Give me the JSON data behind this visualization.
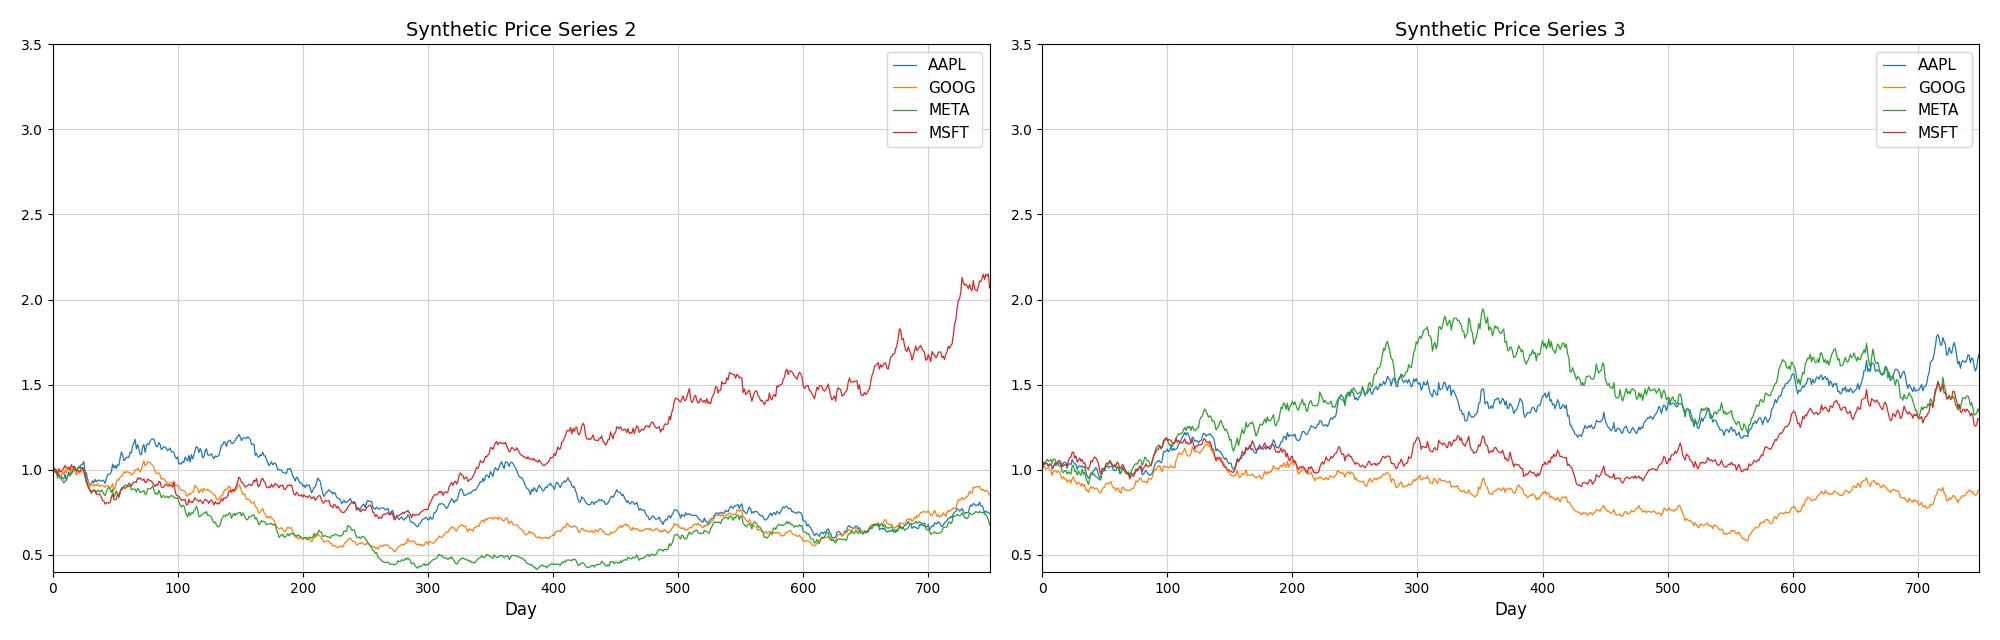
{
  "n_days": 750,
  "title1": "Synthetic Price Series 2",
  "title2": "Synthetic Price Series 3",
  "xlabel": "Day",
  "ylim": [
    0.4,
    3.5
  ],
  "yticks": [
    0.5,
    1.0,
    1.5,
    2.0,
    2.5,
    3.0,
    3.5
  ],
  "xticks": [
    0,
    100,
    200,
    300,
    400,
    500,
    600,
    700
  ],
  "legend_labels": [
    "AAPL",
    "GOOG",
    "META",
    "MSFT"
  ],
  "colors": {
    "AAPL": "#1f77b4",
    "GOOG": "#ff7f0e",
    "META": "#2ca02c",
    "MSFT": "#d62728"
  },
  "figsize": [
    20.0,
    6.4
  ],
  "dpi": 100
}
